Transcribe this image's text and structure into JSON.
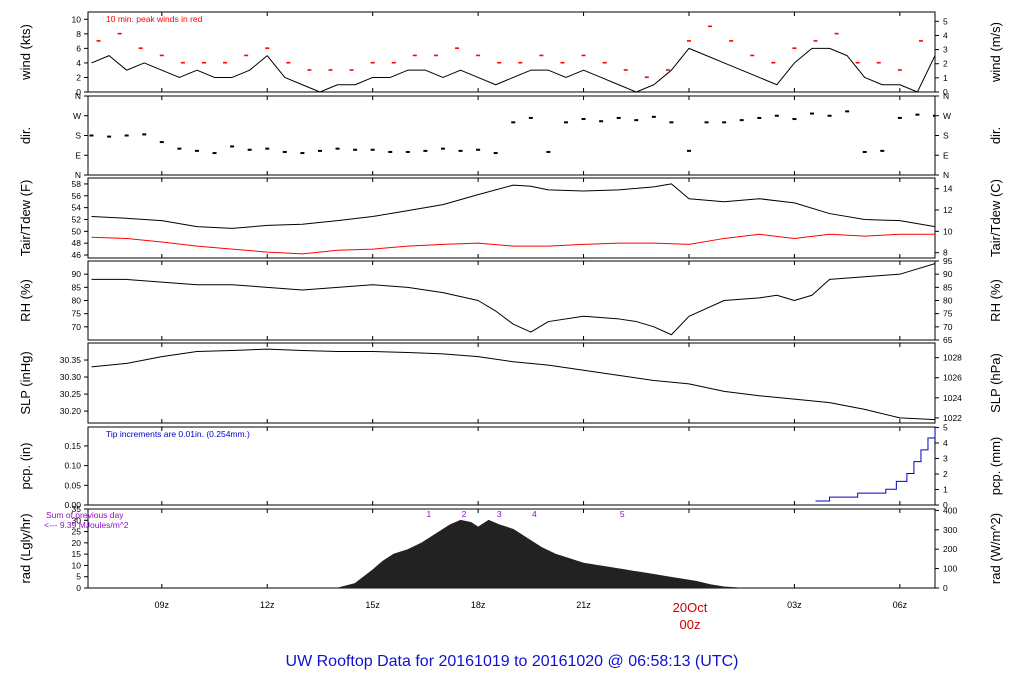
{
  "title": "UW Rooftop Data for 20161019  to  20161020 @ 06:58:13  (UTC)",
  "colors": {
    "frame": "#000000",
    "series_black": "#000000",
    "series_red": "#ff0000",
    "precip_blue": "#0000cc",
    "title_blue": "#1010d0",
    "radiation_annot_purple": "#9010c0",
    "date_red": "#cc0000"
  },
  "time_axis": {
    "range_hours_since_2016_10_19_00z": [
      6.9,
      31.0
    ],
    "ticks": [
      {
        "hour": 9,
        "label": "09z"
      },
      {
        "hour": 12,
        "label": "12z"
      },
      {
        "hour": 15,
        "label": "15z"
      },
      {
        "hour": 18,
        "label": "18z"
      },
      {
        "hour": 21,
        "label": "21z"
      },
      {
        "hour": 24,
        "label": "00z"
      },
      {
        "hour": 27,
        "label": "03z"
      },
      {
        "hour": 30,
        "label": "06z"
      }
    ],
    "date_marker": {
      "hour": 24,
      "date": "20Oct",
      "time": "00z"
    }
  },
  "chart_data": [
    {
      "id": "wind",
      "type": "line",
      "ylabel": "wind (kts)",
      "ylabel_right": "wind (m/s)",
      "ylim": [
        0,
        11
      ],
      "yticks": [
        "0",
        "2",
        "4",
        "6",
        "8",
        "10"
      ],
      "yticks_values": [
        0,
        2,
        4,
        6,
        8,
        10
      ],
      "yticks_right": [
        "0",
        "1",
        "2",
        "3",
        "4",
        "5"
      ],
      "yticks_right_values": [
        0,
        1.944,
        3.888,
        5.832,
        7.776,
        9.72
      ],
      "annotation": "10 min. peak winds in red",
      "series": [
        {
          "name": "wind",
          "color": "#000000",
          "x": [
            7.0,
            7.5,
            8.0,
            8.5,
            9.0,
            9.5,
            10.0,
            10.5,
            11.0,
            11.5,
            12.0,
            12.5,
            13.0,
            13.5,
            14.0,
            14.5,
            15.0,
            15.5,
            16.0,
            16.5,
            17.0,
            17.5,
            18.0,
            18.5,
            19.0,
            19.5,
            20.0,
            20.5,
            21.0,
            21.5,
            22.0,
            22.5,
            23.0,
            23.5,
            24.0,
            24.5,
            25.0,
            25.5,
            26.0,
            26.5,
            27.0,
            27.5,
            28.0,
            28.5,
            29.0,
            29.5,
            30.0,
            30.5,
            31.0
          ],
          "y": [
            4,
            5,
            3,
            4,
            3,
            2,
            3,
            2,
            2,
            3,
            5,
            2,
            1,
            0,
            1,
            1,
            2,
            2,
            3,
            3,
            2,
            3,
            2,
            1,
            2,
            3,
            3,
            2,
            3,
            2,
            1,
            0,
            1,
            3,
            6,
            5,
            4,
            3,
            2,
            1,
            4,
            6,
            6,
            5,
            2,
            1,
            1,
            0,
            5
          ]
        },
        {
          "name": "10 min. peak winds",
          "color": "#ff0000",
          "x": [
            7.2,
            7.8,
            8.4,
            9.0,
            9.6,
            10.2,
            10.8,
            11.4,
            12.0,
            12.6,
            13.2,
            13.8,
            14.4,
            15.0,
            15.6,
            16.2,
            16.8,
            17.4,
            18.0,
            18.6,
            19.2,
            19.8,
            20.4,
            21.0,
            21.6,
            22.2,
            22.8,
            23.4,
            24.0,
            24.6,
            25.2,
            25.8,
            26.4,
            27.0,
            27.6,
            28.2,
            28.8,
            29.4,
            30.0,
            30.6
          ],
          "y": [
            7,
            8,
            6,
            5,
            4,
            4,
            4,
            5,
            6,
            4,
            3,
            3,
            3,
            4,
            4,
            5,
            5,
            6,
            5,
            4,
            4,
            5,
            4,
            5,
            4,
            3,
            2,
            3,
            7,
            9,
            7,
            5,
            4,
            6,
            7,
            8,
            4,
            4,
            3,
            7
          ]
        }
      ]
    },
    {
      "id": "dir",
      "type": "scatter",
      "ylabel": "dir.",
      "ylabel_right": "dir.",
      "ylim": [
        0,
        360
      ],
      "yticks": [
        "N",
        "E",
        "S",
        "W",
        "N"
      ],
      "yticks_values": [
        0,
        90,
        180,
        270,
        360
      ],
      "series": [
        {
          "name": "wind direction",
          "color": "#000000",
          "x": [
            7.0,
            7.5,
            8.0,
            8.5,
            9.0,
            9.5,
            10.0,
            10.5,
            11.0,
            11.5,
            12.0,
            12.5,
            13.0,
            13.5,
            14.0,
            14.5,
            15.0,
            15.5,
            16.0,
            16.5,
            17.0,
            17.5,
            18.0,
            18.5,
            19.0,
            19.5,
            20.0,
            20.5,
            21.0,
            21.5,
            22.0,
            22.5,
            23.0,
            23.5,
            24.0,
            24.5,
            25.0,
            25.5,
            26.0,
            26.5,
            27.0,
            27.5,
            28.0,
            28.5,
            29.0,
            29.5,
            30.0,
            30.5,
            31.0
          ],
          "y": [
            180,
            175,
            180,
            185,
            150,
            120,
            110,
            100,
            130,
            115,
            120,
            105,
            100,
            110,
            120,
            115,
            115,
            105,
            105,
            110,
            120,
            110,
            115,
            100,
            240,
            260,
            105,
            240,
            255,
            245,
            260,
            250,
            265,
            240,
            110,
            240,
            240,
            250,
            260,
            270,
            255,
            280,
            270,
            290,
            105,
            110,
            260,
            275,
            270
          ]
        }
      ]
    },
    {
      "id": "temp",
      "type": "line",
      "ylabel": "Tair/Tdew (F)",
      "ylabel_right": "Tair/Tdew (C)",
      "ylim": [
        45.5,
        59
      ],
      "yticks": [
        "46",
        "48",
        "50",
        "52",
        "54",
        "56",
        "58"
      ],
      "yticks_values": [
        46,
        48,
        50,
        52,
        54,
        56,
        58
      ],
      "yticks_right": [
        "8",
        "10",
        "12",
        "14"
      ],
      "yticks_right_values": [
        46.4,
        50,
        53.6,
        57.2
      ],
      "series": [
        {
          "name": "Tair",
          "color": "#000000",
          "x": [
            7.0,
            8.0,
            9.0,
            10.0,
            11.0,
            12.0,
            13.0,
            14.0,
            15.0,
            16.0,
            17.0,
            18.0,
            19.0,
            19.5,
            20.0,
            21.0,
            22.0,
            23.0,
            23.5,
            24.0,
            25.0,
            26.0,
            27.0,
            28.0,
            29.0,
            30.0,
            31.0
          ],
          "y": [
            52.5,
            52.2,
            51.8,
            50.8,
            50.5,
            51.0,
            51.2,
            51.8,
            52.5,
            53.5,
            54.5,
            56.2,
            57.8,
            57.6,
            57.0,
            56.8,
            57.0,
            57.5,
            58.0,
            55.5,
            55.0,
            55.5,
            54.8,
            53.0,
            52.0,
            51.8,
            50.8
          ]
        },
        {
          "name": "Tdew",
          "color": "#ff0000",
          "x": [
            7.0,
            8.0,
            9.0,
            10.0,
            11.0,
            12.0,
            13.0,
            14.0,
            15.0,
            16.0,
            17.0,
            18.0,
            19.0,
            20.0,
            21.0,
            22.0,
            23.0,
            24.0,
            25.0,
            26.0,
            27.0,
            28.0,
            29.0,
            30.0,
            31.0
          ],
          "y": [
            49.0,
            48.8,
            48.2,
            47.5,
            47.0,
            46.5,
            46.2,
            46.8,
            47.0,
            47.5,
            47.8,
            48.0,
            47.5,
            47.5,
            47.8,
            48.0,
            48.0,
            47.8,
            48.8,
            49.5,
            48.8,
            49.5,
            49.2,
            49.5,
            49.5
          ]
        }
      ]
    },
    {
      "id": "rh",
      "type": "line",
      "ylabel": "RH (%)",
      "ylabel_right": "RH (%)",
      "ylim": [
        65,
        95
      ],
      "yticks": [
        "70",
        "75",
        "80",
        "85",
        "90"
      ],
      "yticks_values": [
        70,
        75,
        80,
        85,
        90
      ],
      "yticks_right": [
        "65",
        "70",
        "75",
        "80",
        "85",
        "90",
        "95"
      ],
      "yticks_right_values": [
        65,
        70,
        75,
        80,
        85,
        90,
        95
      ],
      "series": [
        {
          "name": "RH",
          "color": "#000000",
          "x": [
            7.0,
            8.0,
            9.0,
            10.0,
            11.0,
            12.0,
            13.0,
            14.0,
            15.0,
            16.0,
            17.0,
            18.0,
            18.5,
            19.0,
            19.5,
            20.0,
            21.0,
            22.0,
            22.5,
            23.0,
            23.5,
            24.0,
            25.0,
            26.0,
            26.5,
            27.0,
            27.5,
            28.0,
            29.0,
            30.0,
            31.0
          ],
          "y": [
            88,
            88,
            87,
            86,
            86,
            85,
            84,
            85,
            86,
            85,
            83,
            80,
            76,
            71,
            68,
            72,
            74,
            73,
            72,
            70,
            67,
            74,
            80,
            81,
            82,
            80,
            82,
            88,
            89,
            90,
            94
          ]
        }
      ]
    },
    {
      "id": "slp",
      "type": "line",
      "ylabel": "SLP (inHg)",
      "ylabel_right": "SLP (hPa)",
      "ylim": [
        30.165,
        30.4
      ],
      "yticks": [
        "30.20",
        "30.25",
        "30.30",
        "30.35"
      ],
      "yticks_values": [
        30.2,
        30.25,
        30.3,
        30.35
      ],
      "yticks_right": [
        "1022",
        "1024",
        "1026",
        "1028"
      ],
      "yticks_right_values": [
        30.18,
        30.239,
        30.298,
        30.357
      ],
      "series": [
        {
          "name": "SLP",
          "color": "#000000",
          "x": [
            7.0,
            8.0,
            9.0,
            10.0,
            11.0,
            12.0,
            13.0,
            14.0,
            15.0,
            16.0,
            17.0,
            18.0,
            19.0,
            20.0,
            21.0,
            22.0,
            23.0,
            24.0,
            25.0,
            26.0,
            27.0,
            28.0,
            29.0,
            30.0,
            31.0
          ],
          "y": [
            30.33,
            30.34,
            30.36,
            30.375,
            30.378,
            30.382,
            30.378,
            30.375,
            30.375,
            30.372,
            30.368,
            30.36,
            30.345,
            30.335,
            30.32,
            30.305,
            30.29,
            30.28,
            30.258,
            30.245,
            30.235,
            30.225,
            30.205,
            30.18,
            30.175
          ]
        }
      ]
    },
    {
      "id": "pcp",
      "type": "line",
      "ylabel": "pcp. (in)",
      "ylabel_right": "pcp. (mm)",
      "ylim": [
        0,
        0.198
      ],
      "yticks": [
        "0.00",
        "0.05",
        "0.10",
        "0.15"
      ],
      "yticks_values": [
        0,
        0.05,
        0.1,
        0.15
      ],
      "yticks_right": [
        "0",
        "1",
        "2",
        "3",
        "4",
        "5"
      ],
      "yticks_right_values": [
        0,
        0.0394,
        0.0787,
        0.1181,
        0.1575,
        0.1969
      ],
      "annotation": "Tip increments are 0.01in. (0.254mm.)",
      "series": [
        {
          "name": "precipitation",
          "color": "#0000cc",
          "x": [
            27.6,
            28.0,
            28.4,
            28.8,
            29.2,
            29.6,
            29.9,
            30.2,
            30.4,
            30.6,
            30.8,
            31.0
          ],
          "y": [
            0.01,
            0.02,
            0.02,
            0.03,
            0.03,
            0.04,
            0.06,
            0.08,
            0.11,
            0.14,
            0.17,
            0.2
          ]
        }
      ]
    },
    {
      "id": "rad",
      "type": "area",
      "ylabel": "rad (Lgly/hr)",
      "ylabel_right": "rad (W/m^2)",
      "ylim": [
        0,
        35
      ],
      "yticks": [
        "0",
        "5",
        "10",
        "15",
        "20",
        "25",
        "30",
        "35"
      ],
      "yticks_values": [
        0,
        5,
        10,
        15,
        20,
        25,
        30,
        35
      ],
      "yticks_right": [
        "0",
        "100",
        "200",
        "300",
        "400"
      ],
      "yticks_right_values": [
        0,
        8.6,
        17.2,
        25.8,
        34.4
      ],
      "annotation_lines": [
        "Sum of previous day",
        "<--- 9.39 MJoules/m^2"
      ],
      "hour_markers": [
        {
          "hour": 16.6,
          "label": "1"
        },
        {
          "hour": 17.6,
          "label": "2"
        },
        {
          "hour": 18.6,
          "label": "3"
        },
        {
          "hour": 19.6,
          "label": "4"
        },
        {
          "hour": 22.1,
          "label": "5"
        }
      ],
      "series": [
        {
          "name": "solar radiation",
          "color": "#222222",
          "x": [
            14.0,
            14.5,
            15.0,
            15.3,
            15.6,
            16.0,
            16.4,
            16.8,
            17.2,
            17.5,
            17.8,
            18.0,
            18.3,
            18.6,
            19.0,
            19.4,
            19.8,
            20.2,
            20.6,
            21.0,
            21.4,
            21.8,
            22.2,
            22.6,
            23.0,
            23.4,
            23.8,
            24.2,
            24.6,
            25.0,
            25.5
          ],
          "y": [
            0,
            2,
            8,
            12,
            15,
            17,
            20,
            24,
            28,
            30,
            29,
            27,
            30,
            28,
            26,
            22,
            18,
            15,
            13,
            11,
            10,
            9,
            8,
            7,
            6,
            5,
            4,
            3,
            1.5,
            0.5,
            0
          ]
        }
      ]
    }
  ]
}
